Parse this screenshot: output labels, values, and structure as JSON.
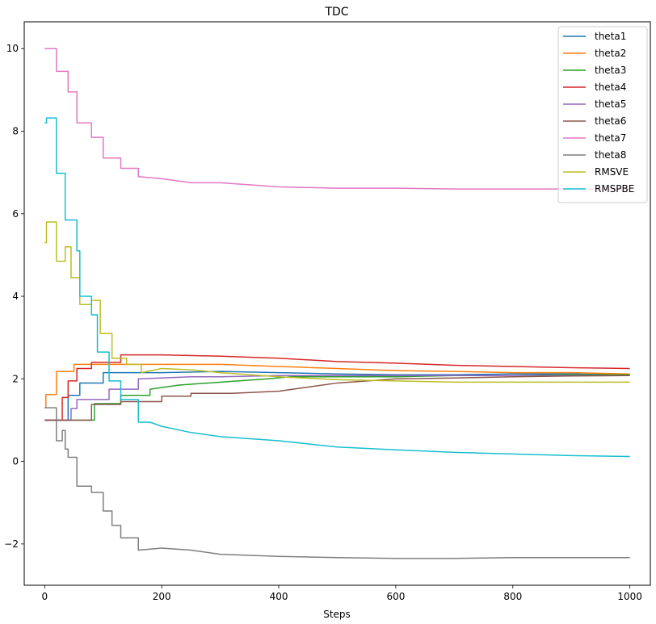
{
  "chart_data": {
    "type": "line",
    "title": "TDC",
    "xlabel": "Steps",
    "ylabel": "",
    "xlim": [
      -35,
      1035
    ],
    "ylim": [
      -3.0,
      10.65
    ],
    "xticks": [
      0,
      200,
      400,
      600,
      800,
      1000
    ],
    "yticks": [
      -2,
      0,
      2,
      4,
      6,
      8,
      10
    ],
    "grid": false,
    "legend_position": "top-right",
    "series": [
      {
        "name": "theta1",
        "color": "#1f77b4",
        "x": [
          0,
          40,
          40,
          60,
          60,
          100,
          100,
          150,
          200,
          300,
          400,
          500,
          600,
          700,
          800,
          900,
          1000
        ],
        "y": [
          1.0,
          1.0,
          1.6,
          1.6,
          1.9,
          1.9,
          2.15,
          2.15,
          2.15,
          2.18,
          2.15,
          2.12,
          2.1,
          2.1,
          2.12,
          2.12,
          2.1
        ]
      },
      {
        "name": "theta2",
        "color": "#ff7f0e",
        "x": [
          0,
          2,
          2,
          20,
          20,
          50,
          50,
          100,
          200,
          300,
          400,
          500,
          600,
          700,
          800,
          900,
          1000
        ],
        "y": [
          1.3,
          1.3,
          1.62,
          1.62,
          2.18,
          2.18,
          2.35,
          2.35,
          2.35,
          2.35,
          2.3,
          2.25,
          2.2,
          2.18,
          2.15,
          2.15,
          2.12
        ]
      },
      {
        "name": "theta3",
        "color": "#2ca02c",
        "x": [
          0,
          85,
          85,
          130,
          130,
          180,
          180,
          230,
          280,
          330,
          380,
          420,
          500,
          600,
          700,
          800,
          900,
          1000
        ],
        "y": [
          1.0,
          1.0,
          1.4,
          1.4,
          1.6,
          1.6,
          1.75,
          1.85,
          1.9,
          1.95,
          2.0,
          2.05,
          2.05,
          2.05,
          2.08,
          2.08,
          2.1,
          2.1
        ]
      },
      {
        "name": "theta4",
        "color": "#d62728",
        "x": [
          0,
          30,
          30,
          40,
          40,
          55,
          55,
          80,
          80,
          130,
          130,
          200,
          300,
          400,
          500,
          600,
          700,
          800,
          900,
          1000
        ],
        "y": [
          1.0,
          1.0,
          1.55,
          1.55,
          1.95,
          1.95,
          2.25,
          2.25,
          2.4,
          2.4,
          2.58,
          2.58,
          2.55,
          2.5,
          2.42,
          2.38,
          2.33,
          2.3,
          2.27,
          2.25
        ]
      },
      {
        "name": "theta5",
        "color": "#9467bd",
        "x": [
          0,
          45,
          45,
          55,
          55,
          110,
          110,
          160,
          160,
          250,
          300,
          400,
          500,
          600,
          700,
          800,
          900,
          1000
        ],
        "y": [
          1.0,
          1.0,
          1.28,
          1.28,
          1.5,
          1.5,
          1.75,
          1.75,
          2.0,
          2.05,
          2.05,
          2.08,
          2.08,
          2.08,
          2.08,
          2.08,
          2.08,
          2.08
        ]
      },
      {
        "name": "theta6",
        "color": "#8c564b",
        "x": [
          0,
          80,
          80,
          130,
          130,
          200,
          200,
          250,
          250,
          320,
          400,
          450,
          500,
          600,
          700,
          800,
          900,
          1000
        ],
        "y": [
          1.0,
          1.0,
          1.38,
          1.38,
          1.45,
          1.45,
          1.58,
          1.58,
          1.65,
          1.65,
          1.7,
          1.8,
          1.9,
          2.0,
          2.02,
          2.05,
          2.07,
          2.08
        ]
      },
      {
        "name": "theta7",
        "color": "#e377c2",
        "x": [
          0,
          20,
          20,
          40,
          40,
          55,
          55,
          80,
          80,
          100,
          100,
          130,
          130,
          160,
          160,
          200,
          250,
          300,
          400,
          500,
          600,
          700,
          800,
          900,
          1000
        ],
        "y": [
          10.0,
          10.0,
          9.45,
          9.45,
          8.95,
          8.95,
          8.2,
          8.2,
          7.85,
          7.85,
          7.35,
          7.35,
          7.1,
          7.1,
          6.9,
          6.85,
          6.75,
          6.75,
          6.65,
          6.62,
          6.62,
          6.6,
          6.6,
          6.6,
          6.6
        ]
      },
      {
        "name": "theta8",
        "color": "#7f7f7f",
        "x": [
          0,
          20,
          20,
          30,
          30,
          35,
          35,
          40,
          40,
          55,
          55,
          80,
          80,
          100,
          100,
          115,
          115,
          130,
          130,
          160,
          160,
          200,
          250,
          300,
          400,
          500,
          600,
          700,
          800,
          900,
          1000
        ],
        "y": [
          1.3,
          1.3,
          0.5,
          0.5,
          0.75,
          0.75,
          0.3,
          0.3,
          0.1,
          0.1,
          -0.6,
          -0.6,
          -0.75,
          -0.75,
          -1.2,
          -1.2,
          -1.55,
          -1.55,
          -1.85,
          -1.85,
          -2.15,
          -2.1,
          -2.15,
          -2.25,
          -2.3,
          -2.33,
          -2.35,
          -2.35,
          -2.33,
          -2.33,
          -2.33
        ]
      },
      {
        "name": "RMSVE",
        "color": "#bcbd22",
        "x": [
          0,
          3,
          3,
          20,
          20,
          35,
          35,
          45,
          45,
          60,
          60,
          80,
          80,
          95,
          95,
          115,
          115,
          140,
          140,
          165,
          165,
          200,
          250,
          300,
          400,
          500,
          600,
          700,
          800,
          900,
          1000
        ],
        "y": [
          5.3,
          5.3,
          5.8,
          5.8,
          4.85,
          4.85,
          5.2,
          5.2,
          4.45,
          4.45,
          3.8,
          3.8,
          3.9,
          3.9,
          3.1,
          3.1,
          2.5,
          2.5,
          2.35,
          2.35,
          2.15,
          2.25,
          2.22,
          2.15,
          2.05,
          1.98,
          1.95,
          1.92,
          1.92,
          1.92,
          1.92
        ]
      },
      {
        "name": "RMSPBE",
        "color": "#17becf",
        "x": [
          0,
          3,
          3,
          20,
          20,
          35,
          35,
          55,
          55,
          60,
          60,
          80,
          80,
          90,
          90,
          110,
          110,
          130,
          130,
          160,
          160,
          180,
          200,
          250,
          300,
          400,
          500,
          600,
          700,
          800,
          900,
          1000
        ],
        "y": [
          8.2,
          8.2,
          8.32,
          8.32,
          6.98,
          6.98,
          5.85,
          5.85,
          5.1,
          5.1,
          4.0,
          4.0,
          3.55,
          3.55,
          2.65,
          2.65,
          1.95,
          1.95,
          1.5,
          1.5,
          0.95,
          0.95,
          0.85,
          0.7,
          0.6,
          0.5,
          0.35,
          0.28,
          0.22,
          0.18,
          0.14,
          0.12
        ]
      }
    ]
  }
}
